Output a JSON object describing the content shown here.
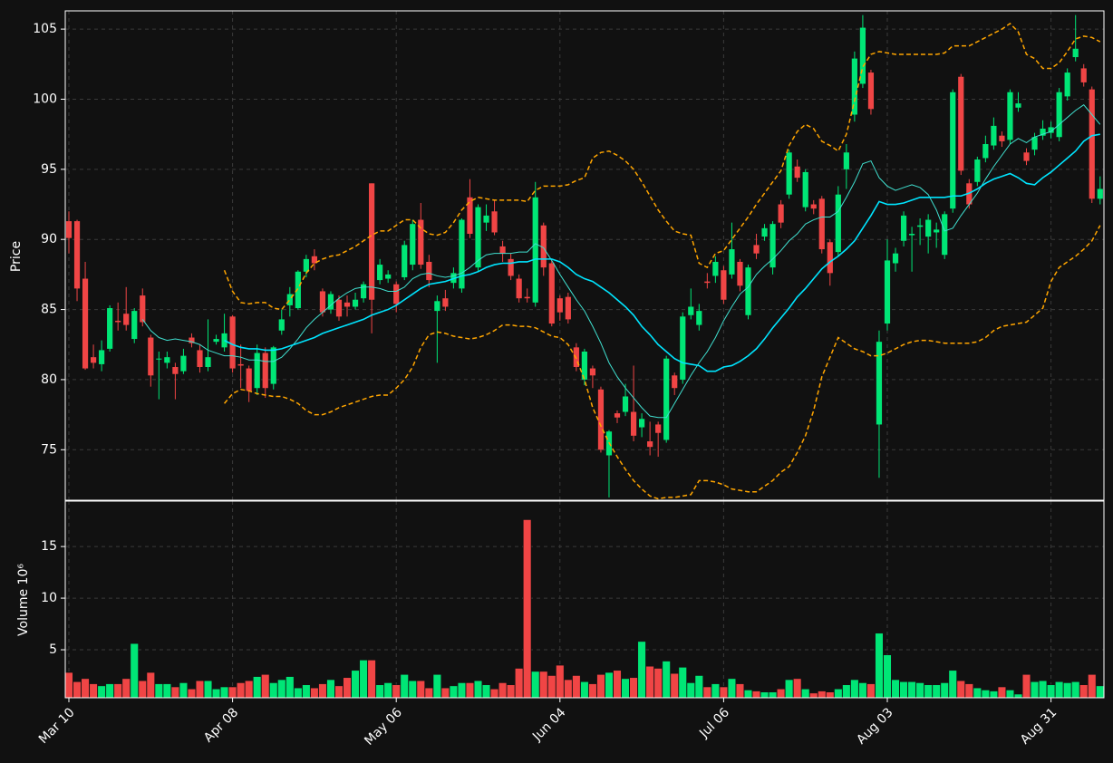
{
  "chart_data": {
    "type": "candlestick",
    "ylabel": "Price",
    "categories": [
      "Mar 10",
      null,
      null,
      null,
      null,
      null,
      null,
      null,
      null,
      null,
      null,
      null,
      null,
      null,
      null,
      null,
      null,
      null,
      null,
      null,
      "Apr 08",
      null,
      null,
      null,
      null,
      null,
      null,
      null,
      null,
      null,
      null,
      null,
      null,
      null,
      null,
      null,
      null,
      null,
      null,
      null,
      "May 06",
      null,
      null,
      null,
      null,
      null,
      null,
      null,
      null,
      null,
      null,
      null,
      null,
      null,
      null,
      null,
      null,
      null,
      null,
      null,
      "Jun 04",
      null,
      null,
      null,
      null,
      null,
      null,
      null,
      null,
      null,
      null,
      null,
      null,
      null,
      null,
      null,
      null,
      null,
      null,
      null,
      "Jul 06",
      null,
      null,
      null,
      null,
      null,
      null,
      null,
      null,
      null,
      null,
      null,
      null,
      null,
      null,
      null,
      null,
      null,
      null,
      null,
      "Aug 03",
      null,
      null,
      null,
      null,
      null,
      null,
      null,
      null,
      null,
      null,
      null,
      null,
      null,
      null,
      null,
      null,
      null,
      null,
      null,
      "Aug 31",
      null,
      null,
      null,
      null,
      null,
      null
    ],
    "open": [
      91.3,
      91.3,
      87.2,
      81.6,
      81.1,
      82.2,
      84.2,
      84.7,
      82.9,
      86.0,
      83.0,
      81.5,
      81.2,
      80.9,
      80.6,
      83.0,
      82.1,
      80.9,
      82.7,
      82.3,
      84.5,
      81.1,
      80.8,
      79.4,
      81.9,
      79.7,
      83.5,
      85.3,
      85.1,
      87.7,
      88.8,
      86.3,
      85.0,
      85.7,
      85.5,
      85.2,
      85.8,
      94.0,
      87.1,
      87.2,
      86.8,
      87.3,
      88.2,
      91.4,
      88.4,
      84.9,
      85.8,
      86.9,
      86.5,
      93.0,
      88.0,
      91.2,
      92.0,
      89.5,
      88.6,
      87.2,
      85.9,
      85.5,
      91.0,
      88.3,
      85.8,
      85.9,
      82.3,
      80.0,
      80.8,
      79.3,
      74.6,
      77.6,
      77.7,
      77.7,
      76.6,
      75.6,
      76.8,
      75.7,
      80.3,
      80.0,
      84.6,
      83.9,
      87.0,
      87.4,
      87.8,
      87.5,
      88.4,
      84.6,
      89.6,
      90.2,
      88.0,
      92.5,
      93.2,
      95.2,
      92.3,
      92.5,
      92.9,
      89.8,
      89.1,
      95.0,
      98.9,
      101.1,
      101.9,
      76.8,
      84.0,
      88.3,
      89.9,
      90.3,
      90.9,
      90.2,
      90.5,
      88.9,
      92.2,
      101.6,
      94.0,
      94.1,
      95.8,
      96.7,
      97.4,
      97.1,
      99.4,
      96.2,
      96.4,
      97.4,
      97.6,
      97.3,
      100.2,
      103.0,
      102.2,
      100.7,
      92.9
    ],
    "high": [
      92.0,
      91.4,
      88.4,
      82.5,
      82.8,
      85.3,
      85.5,
      86.6,
      85.1,
      86.5,
      83.2,
      82.0,
      82.0,
      81.2,
      82.2,
      83.3,
      82.5,
      84.3,
      83.2,
      84.7,
      84.6,
      82.5,
      81.0,
      82.5,
      82.3,
      82.4,
      85.0,
      86.6,
      87.8,
      88.9,
      89.3,
      86.5,
      86.3,
      86.0,
      86.0,
      86.2,
      87.0,
      94.0,
      88.6,
      87.8,
      87.0,
      89.9,
      91.4,
      92.6,
      88.9,
      86.0,
      86.4,
      88.0,
      91.5,
      94.3,
      92.5,
      92.5,
      92.8,
      89.9,
      89.0,
      87.5,
      86.5,
      94.1,
      91.2,
      88.5,
      86.0,
      86.2,
      82.6,
      82.2,
      81.0,
      79.5,
      76.4,
      77.8,
      79.7,
      81.0,
      77.6,
      77.0,
      77.0,
      81.7,
      80.5,
      84.8,
      86.5,
      85.4,
      87.6,
      88.8,
      88.1,
      91.2,
      88.6,
      88.2,
      90.4,
      91.1,
      91.3,
      92.8,
      96.4,
      95.7,
      95.0,
      92.8,
      93.1,
      90.0,
      93.8,
      96.8,
      103.4,
      106.0,
      102.1,
      83.5,
      90.0,
      89.4,
      92.0,
      90.9,
      91.5,
      91.8,
      91.2,
      92.0,
      100.7,
      101.8,
      94.3,
      95.9,
      97.4,
      98.7,
      97.7,
      100.7,
      100.5,
      96.5,
      97.6,
      98.5,
      98.4,
      100.8,
      102.2,
      106.0,
      102.5,
      100.9,
      94.5
    ],
    "low": [
      89.0,
      85.6,
      80.7,
      80.8,
      80.6,
      82.0,
      83.5,
      83.5,
      82.6,
      83.8,
      79.5,
      78.6,
      80.8,
      78.6,
      80.4,
      82.3,
      80.5,
      80.6,
      82.5,
      82.0,
      80.5,
      79.4,
      78.4,
      78.9,
      78.7,
      79.3,
      83.2,
      84.5,
      85.0,
      87.3,
      87.8,
      84.5,
      84.7,
      84.2,
      84.5,
      85.0,
      85.5,
      83.3,
      86.8,
      86.9,
      84.8,
      87.1,
      87.8,
      87.9,
      86.6,
      81.2,
      84.9,
      86.5,
      86.2,
      90.1,
      87.7,
      90.6,
      90.3,
      88.4,
      87.1,
      85.5,
      85.5,
      85.2,
      87.4,
      83.8,
      84.2,
      84.0,
      80.6,
      79.6,
      79.4,
      74.8,
      71.6,
      76.9,
      77.4,
      75.6,
      75.9,
      74.6,
      74.5,
      75.5,
      78.9,
      79.7,
      84.3,
      83.5,
      86.5,
      86.9,
      85.4,
      87.2,
      86.3,
      84.3,
      88.6,
      89.9,
      87.5,
      90.8,
      92.9,
      94.1,
      92.0,
      91.8,
      89.0,
      86.7,
      88.8,
      93.6,
      98.4,
      100.8,
      98.9,
      73.0,
      83.5,
      87.7,
      89.5,
      87.7,
      89.6,
      89.0,
      89.4,
      88.6,
      91.9,
      94.6,
      92.2,
      93.8,
      95.5,
      96.4,
      96.6,
      96.8,
      99.1,
      95.3,
      96.0,
      97.1,
      97.2,
      97.0,
      99.9,
      102.7,
      100.9,
      92.6,
      92.5
    ],
    "close": [
      90.1,
      86.5,
      80.8,
      81.2,
      82.1,
      85.1,
      84.1,
      83.9,
      84.9,
      84.1,
      80.3,
      81.5,
      81.6,
      80.4,
      81.7,
      82.6,
      80.9,
      81.6,
      82.9,
      83.3,
      80.8,
      81.0,
      79.2,
      81.9,
      79.4,
      82.3,
      84.3,
      86.1,
      87.7,
      88.6,
      88.3,
      84.8,
      86.1,
      84.5,
      85.2,
      85.7,
      86.8,
      85.7,
      88.2,
      87.5,
      85.4,
      89.6,
      91.1,
      88.2,
      87.1,
      85.6,
      85.2,
      87.6,
      91.4,
      90.4,
      92.3,
      91.7,
      90.5,
      89.0,
      87.4,
      85.8,
      85.8,
      93.0,
      88.0,
      84.0,
      84.8,
      84.3,
      80.9,
      82.0,
      80.3,
      75.0,
      76.3,
      77.3,
      78.8,
      76.0,
      77.2,
      75.2,
      76.2,
      81.5,
      79.4,
      84.5,
      85.2,
      84.9,
      86.9,
      88.4,
      85.7,
      89.3,
      86.7,
      88.0,
      89.0,
      90.8,
      91.1,
      91.2,
      96.2,
      94.4,
      94.8,
      92.2,
      89.3,
      87.6,
      93.2,
      96.2,
      102.9,
      105.1,
      99.3,
      82.7,
      88.5,
      89.0,
      91.7,
      90.4,
      91.0,
      91.4,
      90.7,
      91.8,
      100.5,
      94.9,
      92.5,
      95.7,
      96.8,
      98.1,
      97.0,
      100.5,
      99.7,
      95.6,
      97.3,
      97.9,
      98.0,
      100.5,
      101.9,
      103.6,
      101.2,
      92.9,
      93.6
    ],
    "up_color": "#00e676",
    "down_color": "#f04545",
    "ylim": [
      71.4,
      106.3
    ],
    "yticks": [
      75,
      80,
      85,
      90,
      95,
      100,
      105
    ],
    "grid": true,
    "overlays": [
      {
        "color": "#40e0d0",
        "width": 1,
        "dash": false,
        "values": [
          null,
          null,
          null,
          null,
          null,
          null,
          null,
          null,
          null,
          84.3,
          83.5,
          83.0,
          82.8,
          82.9,
          82.8,
          82.7,
          82.5,
          82.1,
          81.9,
          81.7,
          81.7,
          81.6,
          81.4,
          81.4,
          81.3,
          81.3,
          81.6,
          82.2,
          82.9,
          83.7,
          84.3,
          84.8,
          85.3,
          85.8,
          86.2,
          86.5,
          86.6,
          86.6,
          86.5,
          86.3,
          86.3,
          86.6,
          87.2,
          87.5,
          87.6,
          87.4,
          87.3,
          87.4,
          87.6,
          88.0,
          88.5,
          88.9,
          89.0,
          89.0,
          89.0,
          89.1,
          89.1,
          89.7,
          89.4,
          88.5,
          87.5,
          86.6,
          85.7,
          84.9,
          83.8,
          82.6,
          81.2,
          80.2,
          79.4,
          78.7,
          78.0,
          77.4,
          77.3,
          77.3,
          78.3,
          79.3,
          80.3,
          81.2,
          82.0,
          83.0,
          84.2,
          85.2,
          86.1,
          86.6,
          87.5,
          88.1,
          88.6,
          89.2,
          89.9,
          90.4,
          91.1,
          91.4,
          91.6,
          91.6,
          92.0,
          93.0,
          94.1,
          95.4,
          95.6,
          94.4,
          93.8,
          93.5,
          93.7,
          93.9,
          93.7,
          93.2,
          92.1,
          90.6,
          90.8,
          91.7,
          92.5,
          93.3,
          94.3,
          95.2,
          96.0,
          96.8,
          97.2,
          96.9,
          97.3,
          97.5,
          97.7,
          98.2,
          98.7,
          99.2,
          99.6,
          98.9,
          98.2
        ]
      },
      {
        "color": "#00e5ff",
        "width": 1.6,
        "dash": false,
        "values": [
          null,
          null,
          null,
          null,
          null,
          null,
          null,
          null,
          null,
          null,
          null,
          null,
          null,
          null,
          null,
          null,
          null,
          null,
          null,
          82.8,
          82.5,
          82.3,
          82.2,
          82.2,
          82.1,
          82.1,
          82.2,
          82.4,
          82.6,
          82.8,
          83.0,
          83.3,
          83.5,
          83.7,
          83.9,
          84.1,
          84.3,
          84.6,
          84.8,
          85.0,
          85.3,
          85.7,
          86.1,
          86.5,
          86.8,
          86.9,
          87.0,
          87.2,
          87.4,
          87.5,
          87.7,
          88.0,
          88.2,
          88.3,
          88.3,
          88.4,
          88.4,
          88.6,
          88.6,
          88.6,
          88.4,
          88.0,
          87.5,
          87.2,
          87.0,
          86.6,
          86.2,
          85.7,
          85.2,
          84.6,
          83.8,
          83.2,
          82.5,
          82.0,
          81.5,
          81.2,
          81.1,
          81.0,
          80.6,
          80.6,
          80.9,
          81.0,
          81.3,
          81.7,
          82.2,
          82.9,
          83.7,
          84.4,
          85.1,
          85.9,
          86.5,
          87.2,
          87.9,
          88.4,
          88.8,
          89.3,
          89.9,
          90.8,
          91.7,
          92.7,
          92.5,
          92.5,
          92.6,
          92.8,
          93.0,
          93.0,
          93.0,
          93.0,
          93.1,
          93.1,
          93.3,
          93.6,
          94.0,
          94.3,
          94.5,
          94.7,
          94.4,
          94.0,
          93.9,
          94.4,
          94.8,
          95.3,
          95.8,
          96.3,
          97.0,
          97.4,
          97.5
        ]
      },
      {
        "color": "#ffa500",
        "width": 1.5,
        "dash": true,
        "values": [
          null,
          null,
          null,
          null,
          null,
          null,
          null,
          null,
          null,
          null,
          null,
          null,
          null,
          null,
          null,
          null,
          null,
          null,
          null,
          87.8,
          86.3,
          85.5,
          85.4,
          85.5,
          85.5,
          85.1,
          85.0,
          85.7,
          86.5,
          87.6,
          88.3,
          88.6,
          88.8,
          88.9,
          89.2,
          89.5,
          89.9,
          90.3,
          90.6,
          90.6,
          91.0,
          91.4,
          91.4,
          90.8,
          90.4,
          90.3,
          90.5,
          91.2,
          92.1,
          92.7,
          93.0,
          92.9,
          92.8,
          92.8,
          92.8,
          92.8,
          92.7,
          93.5,
          93.8,
          93.8,
          93.8,
          93.9,
          94.2,
          94.4,
          95.8,
          96.2,
          96.3,
          96.0,
          95.6,
          95.0,
          94.1,
          93.1,
          92.1,
          91.3,
          90.6,
          90.4,
          90.3,
          88.3,
          88.0,
          89.0,
          89.2,
          90.0,
          90.8,
          91.6,
          92.5,
          93.3,
          94.1,
          94.9,
          96.7,
          97.7,
          98.2,
          97.9,
          97.0,
          96.7,
          96.3,
          97.5,
          99.9,
          102.3,
          103.2,
          103.4,
          103.3,
          103.2,
          103.2,
          103.2,
          103.2,
          103.2,
          103.2,
          103.3,
          103.8,
          103.8,
          103.8,
          104.1,
          104.4,
          104.7,
          105.0,
          105.4,
          104.8,
          103.2,
          102.9,
          102.2,
          102.2,
          102.6,
          103.4,
          104.3,
          104.5,
          104.4,
          104.1
        ]
      },
      {
        "color": "#ffa500",
        "width": 1.5,
        "dash": true,
        "values": [
          null,
          null,
          null,
          null,
          null,
          null,
          null,
          null,
          null,
          null,
          null,
          null,
          null,
          null,
          null,
          null,
          null,
          null,
          null,
          78.3,
          79.0,
          79.3,
          79.2,
          79.0,
          78.9,
          78.8,
          78.8,
          78.6,
          78.3,
          77.8,
          77.5,
          77.5,
          77.7,
          78.0,
          78.2,
          78.4,
          78.6,
          78.8,
          78.9,
          78.9,
          79.4,
          80.0,
          80.9,
          82.3,
          83.2,
          83.4,
          83.3,
          83.1,
          83.0,
          82.9,
          83.0,
          83.2,
          83.5,
          83.9,
          83.9,
          83.8,
          83.8,
          83.7,
          83.4,
          83.1,
          83.0,
          82.5,
          81.5,
          80.0,
          78.0,
          76.7,
          75.5,
          74.5,
          73.6,
          72.8,
          72.2,
          71.7,
          71.5,
          71.6,
          71.6,
          71.7,
          71.8,
          72.8,
          72.8,
          72.7,
          72.5,
          72.2,
          72.1,
          72.0,
          72.0,
          72.4,
          72.8,
          73.4,
          73.8,
          74.8,
          76.0,
          77.8,
          80.2,
          81.6,
          83.0,
          82.6,
          82.2,
          82.0,
          81.7,
          81.7,
          81.9,
          82.2,
          82.5,
          82.7,
          82.8,
          82.8,
          82.7,
          82.6,
          82.6,
          82.6,
          82.6,
          82.7,
          83.0,
          83.5,
          83.8,
          83.9,
          84.0,
          84.1,
          84.6,
          85.1,
          87.0,
          88.0,
          88.4,
          88.8,
          89.3,
          89.9,
          91.0
        ]
      }
    ],
    "volume": {
      "ylabel": "Volume  10⁶",
      "ylim": [
        0.35,
        19.4
      ],
      "yticks": [
        5,
        10,
        15
      ],
      "values": [
        2.8,
        1.9,
        2.2,
        1.7,
        1.5,
        1.7,
        1.7,
        2.2,
        5.6,
        2.0,
        2.8,
        1.7,
        1.7,
        1.4,
        1.8,
        1.2,
        2.0,
        2.0,
        1.2,
        1.4,
        1.4,
        1.8,
        2.0,
        2.4,
        2.6,
        1.8,
        2.1,
        2.4,
        1.3,
        1.6,
        1.3,
        1.7,
        2.1,
        1.5,
        2.3,
        3.0,
        4.0,
        4.0,
        1.6,
        1.8,
        1.6,
        2.6,
        2.0,
        2.0,
        1.3,
        2.6,
        1.3,
        1.5,
        1.8,
        1.8,
        2.0,
        1.6,
        1.2,
        1.8,
        1.6,
        3.2,
        17.6,
        2.9,
        2.9,
        2.5,
        3.5,
        2.1,
        2.5,
        1.9,
        1.7,
        2.6,
        2.8,
        3.0,
        2.2,
        2.3,
        5.8,
        3.4,
        3.2,
        3.9,
        2.7,
        3.3,
        1.8,
        2.5,
        1.4,
        1.7,
        1.4,
        2.2,
        1.7,
        1.1,
        1.0,
        0.9,
        0.9,
        1.2,
        2.1,
        2.2,
        1.2,
        0.8,
        1.0,
        0.9,
        1.2,
        1.6,
        2.1,
        1.8,
        1.7,
        6.6,
        4.5,
        2.1,
        1.9,
        1.9,
        1.8,
        1.6,
        1.6,
        1.8,
        3.0,
        2.0,
        1.7,
        1.3,
        1.1,
        1.0,
        1.4,
        1.1,
        0.7,
        2.6,
        1.9,
        2.0,
        1.6,
        1.9,
        1.8,
        1.9,
        1.6,
        2.6,
        1.5
      ]
    }
  }
}
